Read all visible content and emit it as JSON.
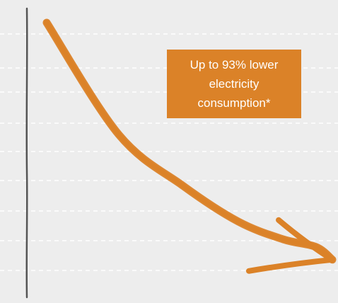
{
  "chart_data": {
    "type": "line",
    "title": "",
    "xlabel": "",
    "ylabel": "",
    "grid": true,
    "legend": "none",
    "annotation": {
      "lines": [
        "Up to 93% lower",
        "electricity",
        "consumption*"
      ]
    },
    "series": [
      {
        "style": "hand-drawn arrow",
        "values": [
          100,
          56,
          36,
          22,
          15,
          12,
          7
        ]
      }
    ],
    "y_reduction_percent": 93
  },
  "colors": {
    "background": "#ededed",
    "gridline": "#ffffff",
    "axis": "#555555",
    "arrow": "#db8228",
    "callout_bg": "#db8228",
    "callout_text": "#ffffff"
  }
}
